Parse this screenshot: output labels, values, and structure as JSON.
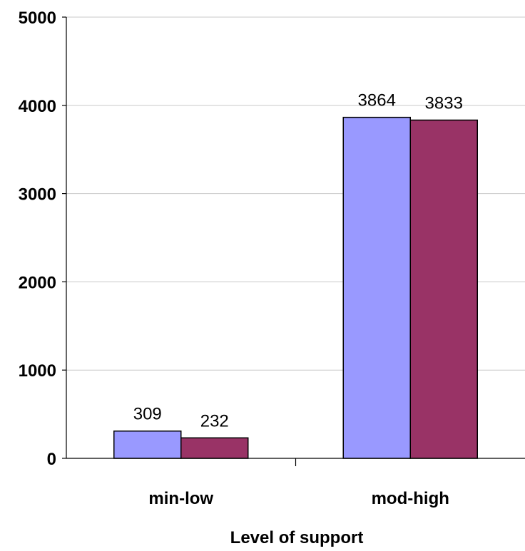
{
  "chart_data": {
    "type": "bar",
    "categories": [
      "min-low",
      "mod-high"
    ],
    "series": [
      {
        "values": [
          309,
          3864
        ],
        "color": "#9999ff"
      },
      {
        "values": [
          232,
          3833
        ],
        "color": "#993366"
      }
    ],
    "yticks": [
      "0",
      "1000",
      "2000",
      "3000",
      "4000",
      "5000"
    ],
    "ylim": [
      0,
      5000
    ],
    "xlabel": "Level of support",
    "ylabel": "",
    "title": "",
    "grid": true,
    "legend": "none"
  }
}
